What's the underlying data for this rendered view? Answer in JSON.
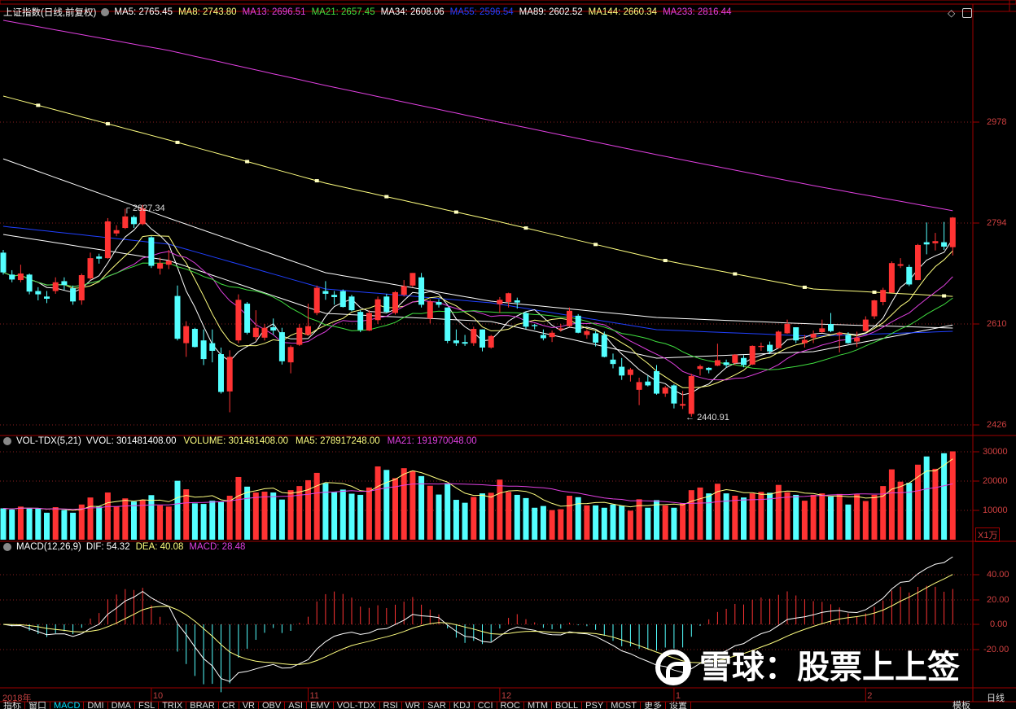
{
  "colors": {
    "up": "#ff3333",
    "down": "#54ffff",
    "border": "#a00000",
    "grid": "#8a2020",
    "axis_text": "#d04040"
  },
  "main_header": {
    "title": "上证指数(日线,前复权)",
    "mas": [
      {
        "label": "MA5: 2765.45",
        "color": "#ffffff"
      },
      {
        "label": "MA8: 2743.80",
        "color": "#ffff80"
      },
      {
        "label": "MA13: 2696.51",
        "color": "#e040e0"
      },
      {
        "label": "MA21: 2657.45",
        "color": "#40e040"
      },
      {
        "label": "MA34: 2608.06",
        "color": "#ffffff"
      },
      {
        "label": "MA55: 2596.54",
        "color": "#2040ff"
      },
      {
        "label": "MA89: 2602.52",
        "color": "#ffffff"
      },
      {
        "label": "MA144: 2660.34",
        "color": "#ffff80"
      },
      {
        "label": "MA233: 2816.44",
        "color": "#e040e0"
      }
    ]
  },
  "vol_header": {
    "title": "VOL-TDX(5,21)",
    "items": [
      {
        "label": "VVOL: 301481408.00",
        "color": "#ffffff"
      },
      {
        "label": "VOLUME: 301481408.00",
        "color": "#ffff80"
      },
      {
        "label": "MA5: 278917248.00",
        "color": "#ffff80"
      },
      {
        "label": "MA21: 191970048.00",
        "color": "#e040e0"
      }
    ]
  },
  "macd_header": {
    "title": "MACD(12,26,9)",
    "items": [
      {
        "label": "DIF: 54.32",
        "color": "#ffffff"
      },
      {
        "label": "DEA: 40.08",
        "color": "#ffff80"
      },
      {
        "label": "MACD: 28.48",
        "color": "#e040e0"
      }
    ]
  },
  "top_right_icons": [
    "diamond-icon",
    "panel-toggle-icon"
  ],
  "price_axis": [
    "2978",
    "2794",
    "2610",
    "2426"
  ],
  "volume_axis": [
    "30000",
    "20000",
    "10000"
  ],
  "volume_unit": "X1万",
  "macd_axis": [
    "40.00",
    "20.00",
    "0.00",
    "-20.00"
  ],
  "date_axis": [
    {
      "label": "2018年",
      "index": 0
    },
    {
      "label": "10",
      "index": 17
    },
    {
      "label": "11",
      "index": 35
    },
    {
      "label": "12",
      "index": 57
    },
    {
      "label": "1",
      "index": 77
    },
    {
      "label": "2",
      "index": 99
    }
  ],
  "annotations": {
    "high": "2827.34",
    "low": "2440.91"
  },
  "tabs": [
    "指标",
    "窗口",
    "MACD",
    "DMI",
    "DMA",
    "FSL",
    "TRIX",
    "BRAR",
    "CR",
    "VR",
    "OBV",
    "ASI",
    "EMV",
    "VOL-TDX",
    "RSI",
    "WR",
    "SAR",
    "KDJ",
    "CCI",
    "ROC",
    "MTM",
    "BOLL",
    "PSY",
    "MOST",
    "更多",
    "设置"
  ],
  "active_tab": "MACD",
  "right_bottom": {
    "period": "日线",
    "template": "模板"
  },
  "watermark": "雪球：股票上上签",
  "chart_data": {
    "type": "candlestick",
    "price_ylim": [
      2405,
      3185
    ],
    "candles_ohlc": [
      [
        2740,
        2745,
        2700,
        2704
      ],
      [
        2700,
        2708,
        2686,
        2691
      ],
      [
        2690,
        2718,
        2686,
        2702
      ],
      [
        2700,
        2702,
        2664,
        2669
      ],
      [
        2670,
        2677,
        2653,
        2664
      ],
      [
        2660,
        2670,
        2648,
        2656
      ],
      [
        2670,
        2695,
        2665,
        2686
      ],
      [
        2688,
        2695,
        2672,
        2681
      ],
      [
        2675,
        2680,
        2645,
        2651
      ],
      [
        2653,
        2702,
        2645,
        2699
      ],
      [
        2693,
        2740,
        2690,
        2730
      ],
      [
        2733,
        2738,
        2720,
        2729
      ],
      [
        2730,
        2803,
        2729,
        2797
      ],
      [
        2775,
        2790,
        2770,
        2781
      ],
      [
        2785,
        2820,
        2783,
        2806
      ],
      [
        2805,
        2808,
        2785,
        2792
      ],
      [
        2792,
        2827.34,
        2790,
        2821
      ],
      [
        2768,
        2770,
        2712,
        2716
      ],
      [
        2711,
        2731,
        2700,
        2721
      ],
      [
        2718,
        2745,
        2710,
        2725
      ],
      [
        2661,
        2680,
        2580,
        2583
      ],
      [
        2575,
        2615,
        2550,
        2606
      ],
      [
        2601,
        2603,
        2567,
        2568
      ],
      [
        2580,
        2600,
        2535,
        2546
      ],
      [
        2575,
        2600,
        2540,
        2561
      ],
      [
        2555,
        2567,
        2483,
        2486
      ],
      [
        2487,
        2562,
        2449,
        2550
      ],
      [
        2580,
        2664,
        2575,
        2654
      ],
      [
        2647,
        2650,
        2591,
        2594
      ],
      [
        2586,
        2635,
        2580,
        2603
      ],
      [
        2585,
        2610,
        2580,
        2603
      ],
      [
        2604,
        2620,
        2590,
        2598
      ],
      [
        2595,
        2603,
        2536,
        2542
      ],
      [
        2540,
        2571,
        2520,
        2568
      ],
      [
        2572,
        2610,
        2570,
        2603
      ],
      [
        2590,
        2647,
        2590,
        2606
      ],
      [
        2630,
        2680,
        2626,
        2676
      ],
      [
        2670,
        2688,
        2654,
        2665
      ],
      [
        2663,
        2670,
        2645,
        2659
      ],
      [
        2670,
        2673,
        2640,
        2641
      ],
      [
        2660,
        2663,
        2633,
        2635
      ],
      [
        2632,
        2635,
        2595,
        2599
      ],
      [
        2598,
        2635,
        2597,
        2630
      ],
      [
        2617,
        2660,
        2610,
        2655
      ],
      [
        2660,
        2665,
        2630,
        2632
      ],
      [
        2630,
        2670,
        2627,
        2668
      ],
      [
        2663,
        2690,
        2660,
        2679
      ],
      [
        2680,
        2703,
        2677,
        2703
      ],
      [
        2695,
        2703,
        2640,
        2645
      ],
      [
        2620,
        2655,
        2611,
        2651
      ],
      [
        2650,
        2655,
        2640,
        2645
      ],
      [
        2640,
        2640,
        2575,
        2579
      ],
      [
        2580,
        2600,
        2570,
        2575
      ],
      [
        2577,
        2590,
        2570,
        2574
      ],
      [
        2575,
        2605,
        2570,
        2601
      ],
      [
        2600,
        2600,
        2560,
        2567
      ],
      [
        2567,
        2590,
        2565,
        2588
      ],
      [
        2646,
        2659,
        2630,
        2654
      ],
      [
        2650,
        2667,
        2640,
        2666
      ],
      [
        2653,
        2658,
        2638,
        2649
      ],
      [
        2630,
        2633,
        2601,
        2605
      ],
      [
        2608,
        2610,
        2600,
        2606
      ],
      [
        2590,
        2600,
        2580,
        2584
      ],
      [
        2586,
        2598,
        2577,
        2594
      ],
      [
        2600,
        2610,
        2596,
        2602
      ],
      [
        2606,
        2640,
        2605,
        2634
      ],
      [
        2625,
        2628,
        2593,
        2594
      ],
      [
        2590,
        2600,
        2583,
        2597
      ],
      [
        2593,
        2597,
        2569,
        2576
      ],
      [
        2590,
        2596,
        2549,
        2550
      ],
      [
        2545,
        2556,
        2529,
        2537
      ],
      [
        2532,
        2548,
        2508,
        2516
      ],
      [
        2517,
        2530,
        2505,
        2527
      ],
      [
        2490,
        2512,
        2462,
        2504
      ],
      [
        2505,
        2516,
        2496,
        2498
      ],
      [
        2524,
        2535,
        2481,
        2483
      ],
      [
        2483,
        2497,
        2477,
        2494
      ],
      [
        2498,
        2500,
        2456,
        2465
      ],
      [
        2461,
        2488,
        2455,
        2464
      ],
      [
        2446,
        2519,
        2440.91,
        2515
      ],
      [
        2528,
        2536,
        2516,
        2533
      ],
      [
        2530,
        2531,
        2520,
        2526
      ],
      [
        2534,
        2574,
        2533,
        2544
      ],
      [
        2540,
        2545,
        2530,
        2535
      ],
      [
        2539,
        2555,
        2535,
        2554
      ],
      [
        2548,
        2553,
        2531,
        2535
      ],
      [
        2536,
        2571,
        2535,
        2570
      ],
      [
        2568,
        2576,
        2561,
        2570
      ],
      [
        2572,
        2578,
        2555,
        2560
      ],
      [
        2566,
        2598,
        2565,
        2596
      ],
      [
        2593,
        2618,
        2592,
        2610
      ],
      [
        2604,
        2604,
        2575,
        2580
      ],
      [
        2575,
        2590,
        2567,
        2581
      ],
      [
        2585,
        2598,
        2575,
        2592
      ],
      [
        2595,
        2618,
        2593,
        2602
      ],
      [
        2610,
        2630,
        2595,
        2597
      ],
      [
        2590,
        2596,
        2558,
        2594
      ],
      [
        2590,
        2595,
        2574,
        2575
      ],
      [
        2578,
        2596,
        2568,
        2585
      ],
      [
        2597,
        2624,
        2596,
        2618
      ],
      [
        2624,
        2654,
        2619,
        2653
      ],
      [
        2650,
        2676,
        2644,
        2672
      ],
      [
        2667,
        2724,
        2667,
        2721
      ],
      [
        2716,
        2730,
        2712,
        2719
      ],
      [
        2714,
        2718,
        2679,
        2682
      ],
      [
        2690,
        2756,
        2690,
        2754
      ],
      [
        2759,
        2795,
        2737,
        2755
      ],
      [
        2757,
        2776,
        2744,
        2761
      ],
      [
        2759,
        2796,
        2745,
        2751
      ],
      [
        2750,
        2805,
        2735,
        2804
      ]
    ],
    "volume_wan": [
      10700,
      10300,
      11300,
      10700,
      10600,
      9200,
      11100,
      10100,
      9200,
      12000,
      14400,
      11300,
      16100,
      11300,
      14100,
      13000,
      13500,
      15200,
      11700,
      11300,
      20100,
      17200,
      12400,
      12200,
      13300,
      12900,
      15000,
      21400,
      18100,
      16100,
      16400,
      16100,
      13700,
      16900,
      18300,
      20300,
      22800,
      19300,
      16200,
      17100,
      15700,
      15300,
      17800,
      25000,
      23800,
      21000,
      24400,
      23500,
      21700,
      18400,
      15400,
      19300,
      13600,
      12600,
      14600,
      15800,
      16000,
      20500,
      16300,
      15300,
      14200,
      10900,
      11500,
      10100,
      10400,
      15000,
      14500,
      11700,
      11700,
      10900,
      12000,
      11600,
      9900,
      13800,
      10900,
      13500,
      11700,
      10900,
      12500,
      16900,
      17800,
      15800,
      19100,
      15800,
      15000,
      14400,
      15800,
      16300,
      16000,
      18700,
      16200,
      15300,
      13300,
      15300,
      15800,
      14700,
      15600,
      12000,
      15500,
      13200,
      15300,
      18300,
      24000,
      19800,
      19400,
      25600,
      28400,
      24200,
      29500,
      30148
    ],
    "ma_long": {
      "sample_index": [
        0,
        19,
        37,
        56,
        75,
        93,
        109
      ],
      "MA34": [
        2773.2,
        2725.7,
        2629.3,
        2614.4,
        2547.6,
        2559.5,
        2608.06
      ],
      "MA55": [
        2788,
        2755.4,
        2673.8,
        2648.6,
        2599.6,
        2587.7,
        2596.54
      ],
      "MA89": [
        2911,
        2802.9,
        2703.5,
        2651.5,
        2621.8,
        2610,
        2602.52
      ],
      "MA144": [
        3025.5,
        2945.4,
        2866.7,
        2799.9,
        2728.7,
        2673.8,
        2660.34
      ],
      "MA233": [
        3163.5,
        3108.6,
        3044.8,
        2981,
        2918.6,
        2862.2,
        2816.44
      ]
    },
    "volume_ylim": [
      0,
      31000
    ],
    "macd_ylim": [
      -35,
      60
    ]
  }
}
